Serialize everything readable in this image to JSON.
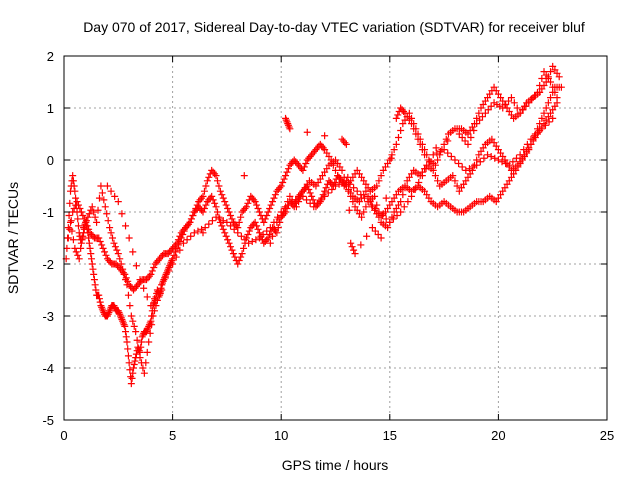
{
  "chart_data": {
    "type": "scatter",
    "title": "Day 070 of 2017, Sidereal Day-to-day VTEC variation (SDTVAR) for receiver bluf",
    "xlabel": "GPS time / hours",
    "ylabel": "SDTVAR / TECUs",
    "xlim": [
      0,
      25
    ],
    "ylim": [
      -5,
      2
    ],
    "xticks": [
      0,
      5,
      10,
      15,
      20,
      25
    ],
    "yticks": [
      -5,
      -4,
      -3,
      -2,
      -1,
      0,
      1,
      2
    ],
    "grid": true,
    "marker": "+",
    "color": "#ff0000",
    "series": [
      {
        "x": [
          0.1,
          0.2,
          0.3,
          0.4,
          0.5,
          0.6,
          0.7,
          0.8,
          0.9,
          1.0,
          1.1,
          1.2,
          1.3,
          1.4,
          1.5,
          1.6,
          1.7,
          1.8,
          1.9,
          2.0,
          2.1,
          2.2,
          2.3,
          2.4,
          2.5,
          2.6,
          2.7,
          2.8,
          2.9,
          3.0,
          3.1,
          3.2,
          3.3,
          3.4,
          3.5,
          3.6,
          3.7,
          3.8,
          3.9,
          4.0,
          4.1,
          4.2,
          4.3,
          4.4,
          4.5,
          4.6,
          4.7,
          4.8,
          4.9,
          5.0,
          5.2,
          5.4,
          5.6,
          5.8,
          6.0,
          6.2,
          6.4,
          6.6,
          6.8,
          7.0,
          7.2,
          7.4,
          7.6,
          7.8,
          8.0,
          8.2,
          8.4,
          8.6,
          8.8,
          9.0,
          9.2,
          9.4,
          9.6,
          9.8,
          10.0,
          10.2,
          10.4,
          10.6,
          10.8,
          11.0,
          11.2,
          11.4,
          11.6,
          11.8,
          12.0,
          12.2,
          12.4,
          12.6,
          12.8,
          13.0,
          13.3,
          13.6,
          13.9,
          14.2,
          14.5,
          14.8,
          15.1,
          15.4,
          15.7,
          16.0,
          16.3,
          16.6,
          16.9,
          17.2,
          17.5,
          17.8,
          18.1,
          18.4,
          18.7,
          19.0,
          19.3,
          19.6,
          19.9,
          20.2,
          20.5,
          20.8,
          21.1,
          21.4,
          21.7,
          22.0,
          22.3,
          22.6,
          22.9
        ],
        "y": [
          -1.9,
          -1.3,
          -0.6,
          -0.3,
          -0.6,
          -1.0,
          -1.4,
          -1.6,
          -1.4,
          -1.2,
          -1.4,
          -1.7,
          -2.0,
          -2.3,
          -2.6,
          -2.6,
          -2.8,
          -2.9,
          -3.0,
          -3.0,
          -2.9,
          -2.8,
          -2.8,
          -2.9,
          -2.9,
          -3.0,
          -3.1,
          -3.2,
          -3.5,
          -3.9,
          -4.3,
          -4.0,
          -3.8,
          -3.6,
          -3.7,
          -3.4,
          -3.3,
          -3.3,
          -3.2,
          -3.1,
          -2.8,
          -2.7,
          -2.5,
          -2.6,
          -2.4,
          -2.3,
          -2.2,
          -2.1,
          -2.0,
          -1.9,
          -1.7,
          -1.5,
          -1.3,
          -1.2,
          -1.0,
          -0.9,
          -1.0,
          -0.8,
          -0.7,
          -0.9,
          -1.2,
          -1.4,
          -1.6,
          -1.8,
          -2.0,
          -1.8,
          -1.5,
          -1.3,
          -1.2,
          -1.4,
          -1.6,
          -1.5,
          -1.3,
          -1.4,
          -1.1,
          -1.0,
          -0.8,
          -0.9,
          -0.7,
          -0.6,
          -0.5,
          -0.7,
          -0.9,
          -0.8,
          -0.6,
          -0.4,
          -0.5,
          -0.3,
          -0.4,
          -0.5,
          -0.7,
          -0.8,
          -0.6,
          -0.9,
          -1.1,
          -1.0,
          -0.8,
          -0.6,
          -0.5,
          -0.6,
          -0.5,
          -0.6,
          -0.8,
          -0.9,
          -0.8,
          -0.9,
          -1.0,
          -1.0,
          -0.9,
          -0.8,
          -0.8,
          -0.7,
          -0.8,
          -0.6,
          -0.4,
          -0.2,
          0.0,
          0.2,
          0.5,
          0.8,
          1.1,
          1.4,
          1.4
        ]
      },
      {
        "x": [
          0.2,
          0.4,
          0.6,
          0.8,
          1.0,
          1.2,
          1.4,
          1.6,
          1.8,
          2.0,
          2.2,
          2.4,
          2.6,
          2.8,
          3.0,
          3.2,
          3.4,
          3.6,
          3.8,
          4.0,
          4.2,
          4.4,
          4.6,
          4.8,
          5.0,
          5.2,
          5.4,
          5.6,
          5.8,
          6.0,
          6.2,
          6.4,
          6.6,
          6.8,
          7.0,
          7.2,
          7.4,
          7.6,
          7.8,
          8.0,
          8.2,
          8.4,
          8.6,
          8.8,
          9.0,
          9.2,
          9.4,
          9.6,
          9.8,
          10.0,
          10.2,
          10.4,
          10.6,
          10.8,
          11.0,
          11.2,
          11.4,
          11.6,
          11.8,
          12.0,
          12.3,
          12.6,
          12.9,
          13.2,
          13.5,
          13.8,
          14.1,
          14.4,
          14.7,
          15.0,
          15.3,
          15.6,
          15.9,
          16.2,
          16.5,
          16.8,
          17.1,
          17.4,
          17.7,
          18.0,
          18.3,
          18.6,
          18.9,
          19.2,
          19.5,
          19.8,
          20.1,
          20.4,
          20.7,
          21.0,
          21.3,
          21.6,
          21.9,
          22.2,
          22.5,
          22.8
        ],
        "y": [
          -1.5,
          -1.0,
          -0.8,
          -1.0,
          -1.2,
          -1.4,
          -1.5,
          -1.5,
          -1.7,
          -1.9,
          -2.0,
          -2.0,
          -2.1,
          -2.2,
          -2.4,
          -2.5,
          -2.4,
          -2.3,
          -2.3,
          -2.2,
          -2.0,
          -1.9,
          -1.8,
          -1.8,
          -1.7,
          -1.6,
          -1.4,
          -1.3,
          -1.2,
          -1.0,
          -0.8,
          -0.7,
          -0.4,
          -0.2,
          -0.3,
          -0.6,
          -0.8,
          -1.0,
          -1.2,
          -1.3,
          -1.0,
          -0.9,
          -0.7,
          -0.8,
          -1.0,
          -1.2,
          -1.0,
          -0.8,
          -0.6,
          -0.5,
          -0.3,
          -0.1,
          0.0,
          -0.1,
          -0.2,
          0.0,
          0.1,
          0.2,
          0.3,
          0.2,
          0.0,
          -0.3,
          -0.5,
          -0.4,
          -0.2,
          -0.4,
          -0.6,
          -0.5,
          -0.2,
          0.0,
          0.3,
          0.7,
          0.9,
          0.6,
          0.3,
          0.0,
          -0.1,
          0.2,
          0.5,
          0.6,
          0.6,
          0.5,
          0.7,
          1.0,
          1.2,
          1.4,
          1.2,
          1.0,
          0.8,
          0.9,
          1.1,
          1.2,
          1.3,
          1.5,
          1.8,
          1.6
        ]
      },
      {
        "x": [
          2.0,
          2.5,
          3.0,
          3.5,
          4.0,
          4.5,
          5.0,
          5.5,
          6.0,
          6.5,
          7.0,
          7.5,
          8.0,
          8.5,
          9.0,
          9.5,
          10.0,
          10.5,
          11.0,
          11.5,
          12.0,
          12.5,
          13.0,
          13.5,
          14.0,
          14.5,
          15.0,
          15.5,
          16.0,
          16.5,
          17.0,
          17.5,
          18.0,
          18.5,
          19.0,
          19.5,
          20.0,
          20.5,
          21.0,
          21.5,
          22.0,
          22.5
        ],
        "y": [
          -0.5,
          -0.8,
          -1.5,
          -2.3,
          -2.8,
          -2.4,
          -2.0,
          -1.6,
          -1.4,
          -1.3,
          -1.1,
          -1.2,
          -1.4,
          -1.6,
          -1.5,
          -1.3,
          -1.0,
          -0.8,
          -0.7,
          -0.9,
          -0.7,
          -0.5,
          -0.4,
          -0.6,
          -0.8,
          -1.0,
          -1.2,
          -1.0,
          -0.7,
          -0.3,
          0.1,
          0.2,
          0.0,
          -0.2,
          -0.1,
          0.1,
          0.0,
          -0.1,
          0.1,
          0.4,
          0.6,
          0.8
        ]
      },
      {
        "x": [
          9.5,
          9.8,
          10.1,
          10.4,
          10.7,
          11.0,
          11.3,
          11.6,
          11.9,
          12.2,
          12.5,
          12.8,
          13.1,
          13.4,
          13.7,
          14.0,
          14.3,
          14.6,
          14.9,
          15.2,
          15.5,
          15.8,
          16.1,
          16.4,
          16.7,
          17.0,
          17.3,
          17.6,
          17.9,
          18.2,
          18.5,
          18.8,
          19.1,
          19.4,
          19.7,
          20.0,
          20.3,
          20.6,
          20.9,
          21.2,
          21.5,
          21.8,
          22.1,
          22.4,
          22.7
        ],
        "y": [
          -1.6,
          -1.2,
          -1.0,
          -0.7,
          -0.9,
          -0.6,
          -0.4,
          -0.5,
          -0.3,
          -0.1,
          0.0,
          -0.2,
          -0.6,
          -0.9,
          -1.1,
          -0.8,
          -0.7,
          -1.2,
          -1.3,
          -1.0,
          -0.8,
          -0.4,
          -0.2,
          -0.3,
          -0.1,
          -0.2,
          -0.5,
          -0.4,
          -0.3,
          -0.6,
          -0.4,
          -0.2,
          0.1,
          0.3,
          0.4,
          0.2,
          0.0,
          -0.2,
          -0.1,
          0.1,
          0.3,
          0.5,
          0.7,
          0.9,
          1.1
        ]
      },
      {
        "x": [
          0.3,
          0.5,
          0.7,
          0.9,
          1.1,
          1.3,
          1.5,
          1.7,
          1.9,
          2.1,
          2.3,
          2.5,
          2.7,
          2.9,
          3.1,
          3.3,
          3.5,
          3.7,
          3.9,
          4.1,
          4.3,
          4.5,
          10.2,
          10.3,
          10.4,
          12.8,
          13.0,
          13.2,
          13.4,
          14.2,
          14.6,
          15.3,
          15.5,
          15.7,
          16.0,
          16.3,
          16.6,
          18.2,
          18.6,
          19.0,
          19.4,
          19.8,
          20.2,
          20.6,
          21.0,
          21.4,
          21.8,
          22.1,
          22.4,
          22.7
        ],
        "y": [
          -1.2,
          -1.7,
          -1.9,
          -1.3,
          -1.1,
          -0.9,
          -1.2,
          -0.5,
          -0.9,
          -1.3,
          -1.6,
          -1.8,
          -2.1,
          -2.4,
          -3.0,
          -3.3,
          -3.8,
          -4.1,
          -3.5,
          -3.0,
          -2.7,
          -2.5,
          0.8,
          0.7,
          0.6,
          0.4,
          0.3,
          -1.6,
          -1.8,
          -1.3,
          -1.5,
          0.8,
          1.0,
          0.9,
          0.7,
          0.4,
          0.1,
          0.5,
          0.3,
          0.7,
          0.9,
          1.1,
          1.0,
          1.2,
          0.9,
          1.1,
          1.3,
          1.7,
          1.5,
          1.2
        ]
      }
    ]
  }
}
